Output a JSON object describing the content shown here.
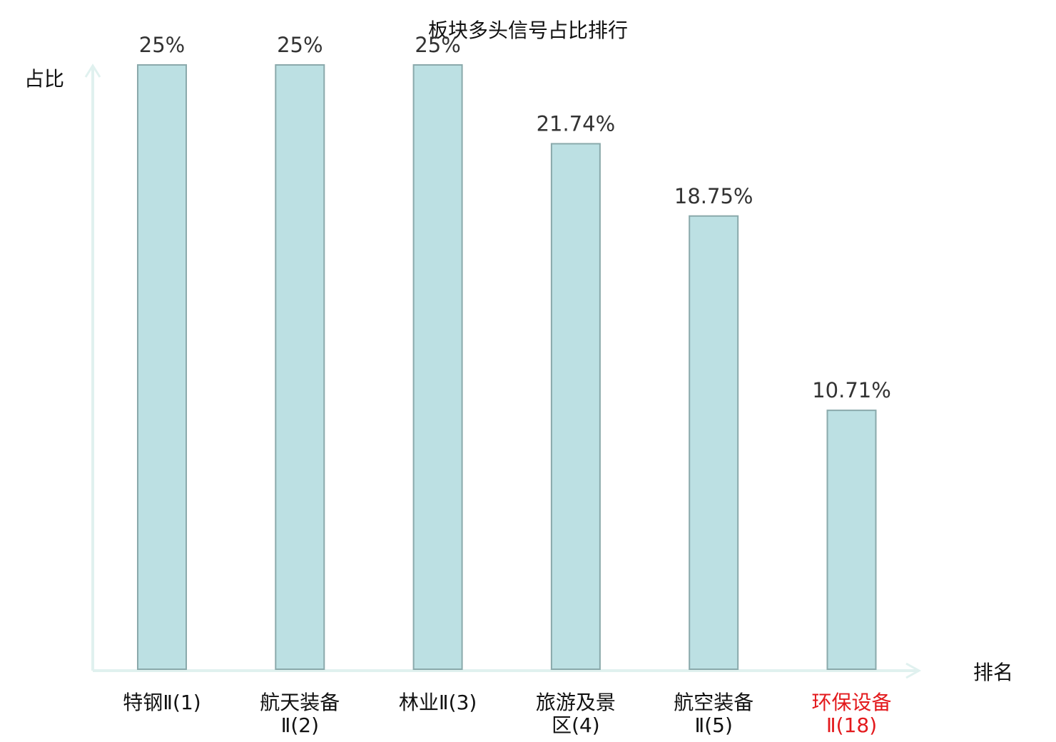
{
  "chart_data": {
    "type": "bar",
    "title": "板块多头信号占比排行",
    "xlabel": "排名",
    "ylabel": "占比",
    "categories": [
      [
        "特钢Ⅱ(1)"
      ],
      [
        "航天装备",
        "Ⅱ(2)"
      ],
      [
        "林业Ⅱ(3)"
      ],
      [
        "旅游及景",
        "区(4)"
      ],
      [
        "航空装备",
        "Ⅱ(5)"
      ],
      [
        "环保设备",
        "Ⅱ(18)"
      ]
    ],
    "values": [
      25,
      25,
      25,
      21.74,
      18.75,
      10.71
    ],
    "value_labels": [
      "25%",
      "25%",
      "25%",
      "21.74%",
      "18.75%",
      "10.71%"
    ],
    "highlight_index": 5,
    "ylim": [
      0,
      25
    ],
    "grid": false,
    "colors": {
      "bar_fill": "#bce0e3",
      "bar_stroke": "#8aa9ab",
      "axis": "#e0f1ef",
      "highlight_label": "#e3191c",
      "label": "#111111"
    }
  }
}
